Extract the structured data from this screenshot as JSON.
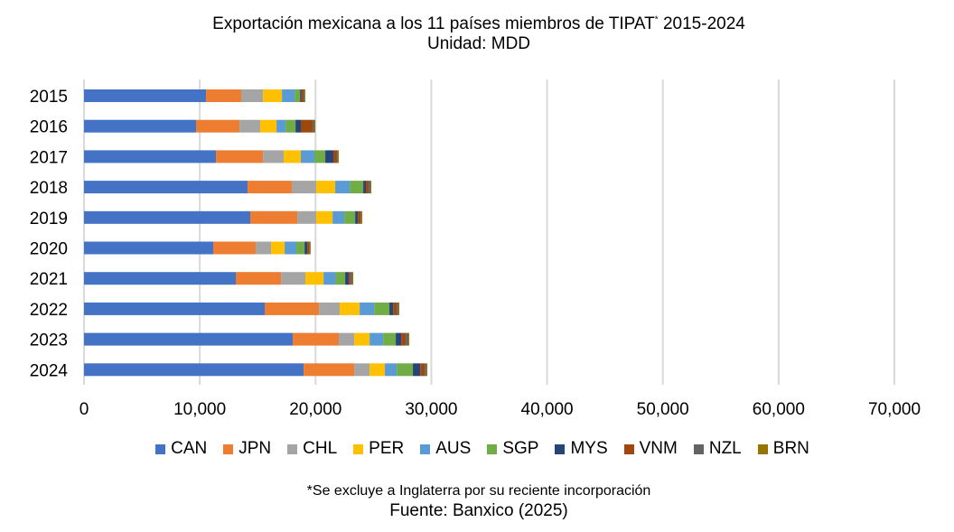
{
  "chart_data": {
    "type": "bar",
    "orientation": "horizontal",
    "stacked": true,
    "title": "Exportación mexicana a los 11 países miembros de TIPAT",
    "title_mark": "*",
    "title_suffix": " 2015-2024",
    "subtitle": "Unidad: MDD",
    "categories": [
      "2015",
      "2016",
      "2017",
      "2018",
      "2019",
      "2020",
      "2021",
      "2022",
      "2023",
      "2024"
    ],
    "xlim": [
      0,
      70000
    ],
    "xticks": [
      "0",
      "10,000",
      "20,000",
      "30,000",
      "40,000",
      "50,000",
      "60,000",
      "70,000"
    ],
    "xtick_values": [
      0,
      10000,
      20000,
      30000,
      40000,
      50000,
      60000,
      70000
    ],
    "grid": true,
    "legend_position": "bottom",
    "series": [
      {
        "name": "CAN",
        "color": "#4472C4",
        "values": [
          10540,
          9680,
          11400,
          14130,
          14360,
          11160,
          13110,
          15610,
          18030,
          18970
        ]
      },
      {
        "name": "JPN",
        "color": "#ED7D31",
        "values": [
          3040,
          3750,
          4060,
          3820,
          4060,
          3670,
          3910,
          4690,
          3980,
          4370
        ]
      },
      {
        "name": "CHL",
        "color": "#A5A5A5",
        "values": [
          1880,
          1790,
          1790,
          2110,
          1640,
          1330,
          2100,
          1790,
          1330,
          1330
        ]
      },
      {
        "name": "PER",
        "color": "#FFC000",
        "values": [
          1640,
          1410,
          1480,
          1640,
          1410,
          1170,
          1570,
          1720,
          1330,
          1320
        ]
      },
      {
        "name": "AUS",
        "color": "#5B9BD5",
        "values": [
          1090,
          780,
          1170,
          1250,
          1010,
          1010,
          1040,
          1250,
          1170,
          1020
        ]
      },
      {
        "name": "SGP",
        "color": "#70AD47",
        "values": [
          470,
          860,
          940,
          1170,
          940,
          710,
          830,
          1320,
          1090,
          1400
        ]
      },
      {
        "name": "MYS",
        "color": "#264478",
        "values": [
          130,
          460,
          700,
          230,
          230,
          230,
          310,
          320,
          470,
          630
        ]
      },
      {
        "name": "VNM",
        "color": "#9E480E",
        "values": [
          180,
          1020,
          320,
          240,
          240,
          160,
          160,
          310,
          390,
          390
        ]
      },
      {
        "name": "NZL",
        "color": "#636363",
        "values": [
          80,
          150,
          70,
          150,
          70,
          80,
          150,
          150,
          230,
          150
        ]
      },
      {
        "name": "BRN",
        "color": "#997300",
        "values": [
          70,
          80,
          80,
          80,
          80,
          70,
          80,
          80,
          80,
          80
        ]
      }
    ],
    "footnote": "*Se excluye a Inglaterra por su reciente incorporación",
    "source": "Fuente: Banxico (2025)"
  }
}
